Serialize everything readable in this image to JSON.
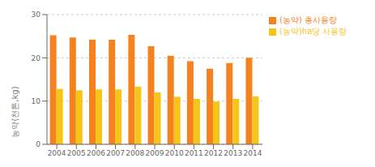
{
  "chart_data": {
    "type": "bar",
    "categories": [
      "2004",
      "2005",
      "2006",
      "2007",
      "2008",
      "2009",
      "2010",
      "2011",
      "2012",
      "2013",
      "2014"
    ],
    "series": [
      {
        "name": "(농약) 총사용량",
        "color": "#F5821E",
        "values": [
          25.2,
          24.7,
          24.2,
          24.2,
          25.3,
          22.7,
          20.5,
          19.2,
          17.5,
          18.8,
          20.0
        ]
      },
      {
        "name": "(농약)ha당 사용량",
        "color": "#F5C518",
        "values": [
          12.8,
          12.5,
          12.7,
          12.7,
          13.3,
          12.0,
          11.0,
          10.5,
          9.9,
          10.5,
          11.1
        ]
      }
    ],
    "ylabel": "농약(천톤,kg)",
    "ylim": [
      0,
      30
    ],
    "yticks": [
      0,
      10,
      20,
      30
    ],
    "grid": true,
    "legend": "right"
  }
}
